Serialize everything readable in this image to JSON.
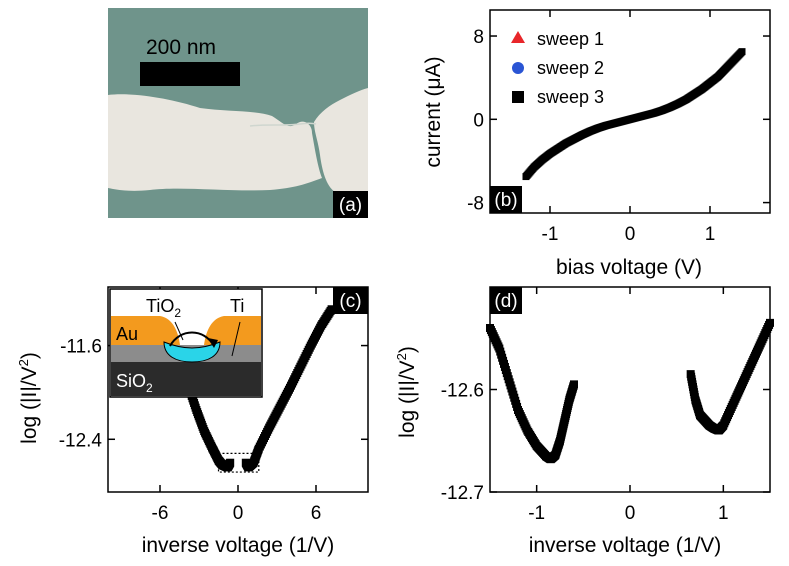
{
  "colors": {
    "sweep1": "#e8262a",
    "sweep2": "#2a55d4",
    "sweep3": "#000000",
    "sem_bg": "#6f948b",
    "sem_metal": "#e9e6df",
    "au": "#f39a1e",
    "ti": "#8c8c8c",
    "sio2": "#2b2b2b",
    "tio2": "#2ad4e8"
  },
  "icons": {
    "sweep1_marker": "triangle-up-icon",
    "sweep2_marker": "circle-icon",
    "sweep3_marker": "square-icon",
    "tunnel_arrow": "curved-arrow-icon"
  },
  "panel_a": {
    "label": "(a)",
    "scale_bar_label": "200 nm",
    "scale_bar_nm": 200
  },
  "inset_c": {
    "tio2_label": "TiO",
    "tio2_sub": "2",
    "ti_label": "Ti",
    "au_label": "Au",
    "sio2_label": "SiO",
    "sio2_sub": "2"
  },
  "chart_data": [
    {
      "panel": "(b)",
      "type": "line",
      "xlabel": "bias voltage (V)",
      "ylabel_pre": "current (",
      "ylabel_mu": "μ",
      "ylabel_post": "A)",
      "xlim": [
        -1.75,
        1.75
      ],
      "ylim": [
        -9,
        10.5
      ],
      "xticks": [
        {
          "v": -1,
          "label": "-1"
        },
        {
          "v": 0,
          "label": "0"
        },
        {
          "v": 1,
          "label": "1"
        }
      ],
      "yticks": [
        {
          "v": -8,
          "label": "-8"
        },
        {
          "v": 0,
          "label": "0"
        },
        {
          "v": 8,
          "label": "8"
        }
      ],
      "legend_position": "top-left",
      "series": [
        {
          "name": "sweep 1",
          "marker": "triangle"
        },
        {
          "name": "sweep 2",
          "marker": "circle"
        },
        {
          "name": "sweep 3",
          "marker": "square"
        }
      ],
      "x": [
        -1.3,
        -1.2,
        -1.1,
        -1.0,
        -0.9,
        -0.8,
        -0.7,
        -0.6,
        -0.5,
        -0.4,
        -0.3,
        -0.2,
        -0.1,
        0.0,
        0.1,
        0.2,
        0.3,
        0.4,
        0.5,
        0.6,
        0.7,
        0.8,
        0.9,
        1.0,
        1.1,
        1.2,
        1.3,
        1.4
      ],
      "values": [
        -5.5,
        -4.6,
        -3.9,
        -3.3,
        -2.8,
        -2.3,
        -1.9,
        -1.5,
        -1.15,
        -0.85,
        -0.6,
        -0.4,
        -0.2,
        0.0,
        0.2,
        0.4,
        0.6,
        0.85,
        1.15,
        1.5,
        1.9,
        2.4,
        2.9,
        3.5,
        4.1,
        4.9,
        5.7,
        6.5
      ]
    },
    {
      "panel": "(c)",
      "type": "line",
      "xlabel": "inverse voltage (1/V)",
      "ylabel_pre": "log (|I|/V",
      "ylabel_sup": "2",
      "ylabel_post": ")",
      "xlim": [
        -10,
        10
      ],
      "ylim": [
        -12.85,
        -11.1
      ],
      "xticks": [
        {
          "v": -6,
          "label": "-6"
        },
        {
          "v": 0,
          "label": "0"
        },
        {
          "v": 6,
          "label": "6"
        }
      ],
      "yticks": [
        {
          "v": -11.6,
          "label": "-11.6"
        },
        {
          "v": -12.4,
          "label": "-12.4"
        }
      ],
      "zoom_box": {
        "x": [
          -1.5,
          1.6
        ],
        "y": [
          -12.68,
          -12.52
        ]
      },
      "segments": [
        {
          "x": [
            -3.8,
            -3.2,
            -2.6,
            -2.0,
            -1.5,
            -1.2,
            -0.8,
            -0.6
          ],
          "y": [
            -11.95,
            -12.15,
            -12.33,
            -12.47,
            -12.58,
            -12.62,
            -12.64,
            -12.6
          ]
        },
        {
          "x": [
            0.6,
            0.8,
            1.2,
            1.6,
            2.4,
            3.2,
            4.0,
            4.8,
            5.6,
            6.4,
            7.2
          ],
          "y": [
            -12.6,
            -12.64,
            -12.6,
            -12.48,
            -12.3,
            -12.13,
            -11.96,
            -11.78,
            -11.6,
            -11.43,
            -11.29
          ]
        }
      ]
    },
    {
      "panel": "(d)",
      "type": "line",
      "xlabel": "inverse voltage (1/V)",
      "ylabel_pre": "log (|I|/V",
      "ylabel_sup": "2",
      "ylabel_post": ")",
      "xlim": [
        -1.5,
        1.5
      ],
      "ylim": [
        -12.7,
        -12.5
      ],
      "xticks": [
        {
          "v": -1,
          "label": "-1"
        },
        {
          "v": 0,
          "label": "0"
        },
        {
          "v": 1,
          "label": "1"
        }
      ],
      "yticks": [
        {
          "v": -12.6,
          "label": "-12.6"
        },
        {
          "v": -12.7,
          "label": "-12.7"
        }
      ],
      "segments": [
        {
          "x": [
            -1.5,
            -1.4,
            -1.3,
            -1.2,
            -1.1,
            -1.0,
            -0.9,
            -0.85,
            -0.8,
            -0.75,
            -0.7,
            -0.65,
            -0.6
          ],
          "y": [
            -12.54,
            -12.56,
            -12.59,
            -12.62,
            -12.64,
            -12.655,
            -12.665,
            -12.668,
            -12.664,
            -12.65,
            -12.63,
            -12.61,
            -12.595
          ]
        },
        {
          "x": [
            0.65,
            0.7,
            0.75,
            0.8,
            0.85,
            0.9,
            0.95,
            1.0,
            1.1,
            1.2,
            1.3,
            1.4,
            1.5
          ],
          "y": [
            -12.585,
            -12.61,
            -12.625,
            -12.63,
            -12.635,
            -12.638,
            -12.64,
            -12.635,
            -12.615,
            -12.595,
            -12.575,
            -12.555,
            -12.535
          ]
        }
      ]
    }
  ]
}
